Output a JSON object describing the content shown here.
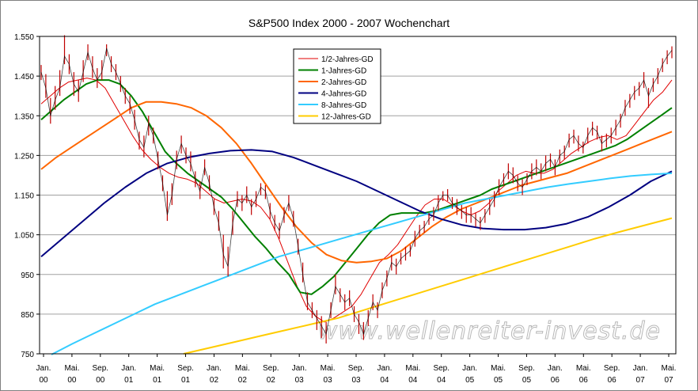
{
  "chart_data": {
    "type": "line",
    "title": "S&P500 Index 2000 - 2007 Wochenchart",
    "watermark": "www.wellenreiter-invest.de",
    "ylim": [
      750,
      1550
    ],
    "y_ticks": [
      "1.550",
      "1.450",
      "1.350",
      "1.250",
      "1.150",
      "1.050",
      "950",
      "850",
      "750"
    ],
    "x_ticks": [
      {
        "m": "Jan.",
        "y": "00"
      },
      {
        "m": "Mai.",
        "y": "00"
      },
      {
        "m": "Sep.",
        "y": "00"
      },
      {
        "m": "Jan.",
        "y": "01"
      },
      {
        "m": "Mai.",
        "y": "01"
      },
      {
        "m": "Sep.",
        "y": "01"
      },
      {
        "m": "Jan.",
        "y": "02"
      },
      {
        "m": "Mai.",
        "y": "02"
      },
      {
        "m": "Sep.",
        "y": "02"
      },
      {
        "m": "Jan.",
        "y": "03"
      },
      {
        "m": "Mai.",
        "y": "03"
      },
      {
        "m": "Sep.",
        "y": "03"
      },
      {
        "m": "Jan.",
        "y": "04"
      },
      {
        "m": "Mai.",
        "y": "04"
      },
      {
        "m": "Sep.",
        "y": "04"
      },
      {
        "m": "Jan.",
        "y": "05"
      },
      {
        "m": "Mai.",
        "y": "05"
      },
      {
        "m": "Sep.",
        "y": "05"
      },
      {
        "m": "Jan.",
        "y": "06"
      },
      {
        "m": "Mai.",
        "y": "06"
      },
      {
        "m": "Sep.",
        "y": "06"
      },
      {
        "m": "Jan.",
        "y": "07"
      },
      {
        "m": "Mai.",
        "y": "07"
      }
    ],
    "legend_position": "top-center",
    "price": {
      "name": "S&P500",
      "color": "#c00000",
      "values": [
        1460,
        1420,
        1350,
        1390,
        1420,
        1500,
        1480,
        1430,
        1410,
        1460,
        1510,
        1470,
        1440,
        1460,
        1520,
        1480,
        1460,
        1430,
        1400,
        1380,
        1340,
        1290,
        1270,
        1330,
        1300,
        1240,
        1180,
        1100,
        1150,
        1240,
        1280,
        1250,
        1230,
        1190,
        1160,
        1220,
        1180,
        1120,
        1080,
        1000,
        970,
        1080,
        1140,
        1130,
        1150,
        1120,
        1140,
        1170,
        1160,
        1110,
        1080,
        1060,
        1100,
        1130,
        1090,
        1020,
        950,
        880,
        860,
        840,
        820,
        800,
        860,
        920,
        900,
        880,
        890,
        850,
        830,
        800,
        840,
        880,
        860,
        910,
        940,
        980,
        970,
        990,
        1000,
        1010,
        1040,
        1060,
        1070,
        1090,
        1100,
        1130,
        1150,
        1150,
        1130,
        1120,
        1110,
        1100,
        1100,
        1090,
        1080,
        1100,
        1120,
        1140,
        1170,
        1190,
        1210,
        1200,
        1180,
        1170,
        1190,
        1210,
        1220,
        1210,
        1230,
        1240,
        1220,
        1250,
        1260,
        1290,
        1300,
        1280,
        1270,
        1300,
        1320,
        1310,
        1280,
        1290,
        1300,
        1320,
        1340,
        1370,
        1390,
        1410,
        1420,
        1440,
        1400,
        1430,
        1450,
        1480,
        1500,
        1515
      ],
      "highs": [
        1478,
        1455,
        1395,
        1425,
        1465,
        1553,
        1505,
        1460,
        1440,
        1490,
        1530,
        1500,
        1470,
        1490,
        1530,
        1500,
        1480,
        1450,
        1420,
        1400,
        1365,
        1310,
        1300,
        1350,
        1320,
        1260,
        1200,
        1160,
        1180,
        1262,
        1300,
        1270,
        1260,
        1210,
        1185,
        1240,
        1200,
        1140,
        1110,
        1050,
        1020,
        1110,
        1160,
        1150,
        1172,
        1140,
        1160,
        1180,
        1175,
        1130,
        1100,
        1080,
        1120,
        1150,
        1110,
        1040,
        980,
        905,
        880,
        860,
        845,
        830,
        880,
        950,
        915,
        900,
        910,
        870,
        850,
        830,
        860,
        900,
        880,
        930,
        960,
        1000,
        990,
        1005,
        1020,
        1025,
        1060,
        1075,
        1085,
        1105,
        1120,
        1150,
        1160,
        1165,
        1145,
        1140,
        1125,
        1120,
        1120,
        1105,
        1095,
        1115,
        1140,
        1160,
        1190,
        1205,
        1230,
        1220,
        1200,
        1190,
        1205,
        1230,
        1240,
        1230,
        1250,
        1255,
        1240,
        1265,
        1275,
        1305,
        1315,
        1300,
        1285,
        1320,
        1335,
        1325,
        1300,
        1305,
        1320,
        1340,
        1355,
        1390,
        1405,
        1425,
        1435,
        1460,
        1420,
        1445,
        1470,
        1495,
        1515,
        1525
      ],
      "lows": [
        1440,
        1395,
        1330,
        1365,
        1400,
        1480,
        1455,
        1400,
        1385,
        1435,
        1490,
        1445,
        1420,
        1440,
        1500,
        1460,
        1440,
        1410,
        1380,
        1355,
        1315,
        1265,
        1245,
        1300,
        1280,
        1215,
        1160,
        1085,
        1125,
        1215,
        1255,
        1230,
        1210,
        1170,
        1140,
        1200,
        1160,
        1100,
        1060,
        965,
        945,
        1050,
        1120,
        1110,
        1130,
        1100,
        1120,
        1150,
        1140,
        1090,
        1060,
        1040,
        1080,
        1110,
        1070,
        1000,
        930,
        860,
        840,
        810,
        790,
        776,
        840,
        900,
        880,
        860,
        870,
        830,
        800,
        785,
        820,
        860,
        840,
        890,
        920,
        960,
        950,
        975,
        985,
        995,
        1020,
        1045,
        1055,
        1075,
        1085,
        1110,
        1135,
        1135,
        1115,
        1100,
        1090,
        1080,
        1080,
        1070,
        1062,
        1080,
        1100,
        1120,
        1150,
        1175,
        1190,
        1180,
        1160,
        1150,
        1175,
        1190,
        1200,
        1190,
        1210,
        1220,
        1200,
        1230,
        1240,
        1270,
        1280,
        1260,
        1255,
        1280,
        1300,
        1290,
        1260,
        1270,
        1280,
        1300,
        1320,
        1350,
        1370,
        1390,
        1400,
        1420,
        1370,
        1410,
        1430,
        1460,
        1480,
        1495
      ]
    },
    "series": [
      {
        "name": "1/2-Jahres-GD",
        "color": "#e00000",
        "values": [
          1380,
          1400,
          1420,
          1435,
          1440,
          1445,
          1440,
          1420,
          1380,
          1340,
          1300,
          1265,
          1240,
          1220,
          1205,
          1195,
          1190,
          1180,
          1160,
          1140,
          1130,
          1135,
          1140,
          1135,
          1120,
          1090,
          1040,
          980,
          920,
          870,
          845,
          830,
          840,
          855,
          870,
          900,
          940,
          980,
          1000,
          1025,
          1060,
          1095,
          1125,
          1140,
          1140,
          1125,
          1110,
          1100,
          1110,
          1130,
          1160,
          1180,
          1200,
          1210,
          1205,
          1205,
          1215,
          1235,
          1255,
          1270,
          1285,
          1295,
          1300,
          1290,
          1300,
          1330,
          1360,
          1390,
          1410,
          1440
        ]
      },
      {
        "name": "1-Jahres-GD",
        "color": "#008000",
        "values": [
          1340,
          1365,
          1390,
          1410,
          1430,
          1440,
          1440,
          1430,
          1400,
          1360,
          1310,
          1260,
          1230,
          1205,
          1185,
          1165,
          1145,
          1115,
          1080,
          1045,
          1015,
          980,
          950,
          905,
          900,
          920,
          945,
          980,
          1015,
          1050,
          1080,
          1100,
          1105,
          1105,
          1105,
          1110,
          1120,
          1130,
          1140,
          1150,
          1165,
          1175,
          1185,
          1195,
          1205,
          1215,
          1225,
          1235,
          1245,
          1255,
          1265,
          1275,
          1290,
          1310,
          1330,
          1350,
          1370
        ]
      },
      {
        "name": "2-Jahres-GD",
        "color": "#ff6600",
        "values": [
          1215,
          1245,
          1270,
          1295,
          1320,
          1345,
          1370,
          1385,
          1385,
          1380,
          1370,
          1350,
          1320,
          1280,
          1230,
          1175,
          1120,
          1070,
          1030,
          1000,
          985,
          980,
          983,
          990,
          1010,
          1040,
          1070,
          1095,
          1115,
          1130,
          1145,
          1160,
          1175,
          1185,
          1195,
          1205,
          1220,
          1235,
          1250,
          1265,
          1280,
          1295,
          1310
        ]
      },
      {
        "name": "4-Jahres-GD",
        "color": "#000080",
        "values": [
          995,
          1040,
          1085,
          1130,
          1170,
          1205,
          1230,
          1245,
          1255,
          1262,
          1264,
          1260,
          1245,
          1225,
          1205,
          1185,
          1160,
          1135,
          1110,
          1090,
          1075,
          1066,
          1063,
          1063,
          1068,
          1078,
          1095,
          1120,
          1150,
          1185,
          1210
        ]
      },
      {
        "name": "8-Jahres-GD",
        "color": "#33ccff",
        "values": [
          748,
          775,
          800,
          825,
          850,
          875,
          895,
          915,
          935,
          955,
          975,
          995,
          1010,
          1025,
          1040,
          1055,
          1070,
          1085,
          1100,
          1115,
          1130,
          1140,
          1150,
          1160,
          1170,
          1178,
          1185,
          1192,
          1198,
          1202,
          1205
        ]
      },
      {
        "name": "12-Jahres-GD",
        "color": "#ffcc00",
        "values": [
          750,
          765,
          780,
          795,
          810,
          825,
          840,
          860,
          880,
          900,
          920,
          940,
          960,
          980,
          1000,
          1020,
          1040,
          1058,
          1075,
          1092
        ]
      }
    ]
  }
}
